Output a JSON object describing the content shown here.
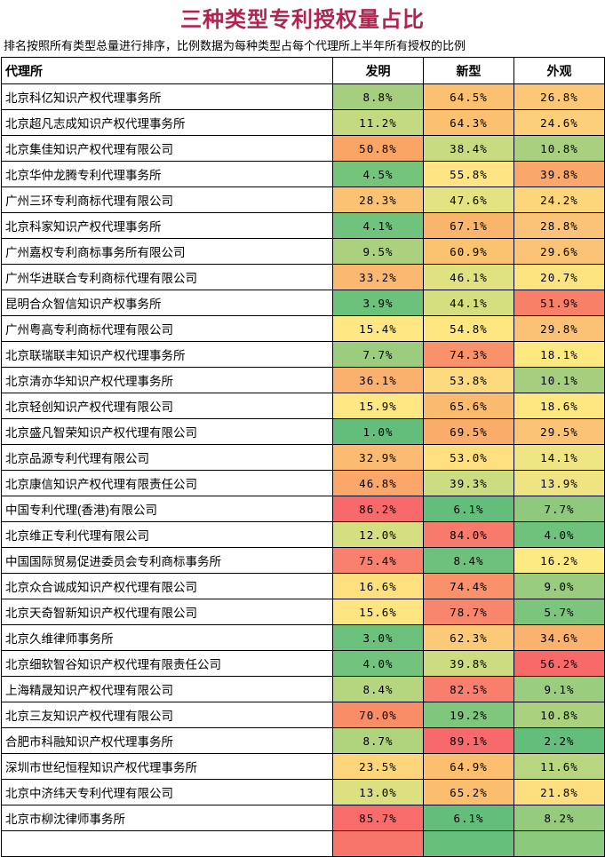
{
  "title": "三种类型专利授权量占比",
  "title_color": "#B0254F",
  "subtitle": "排名按照所有类型总量进行排序，比例数据为每种类型占每个代理所上半年所有授权的比例",
  "chart_data": {
    "type": "heatmap",
    "title": "三种类型专利授权量占比",
    "unit": "%",
    "columns": [
      "代理所",
      "发明",
      "新型",
      "外观"
    ],
    "color_scale": {
      "low_color": "#63BE7B",
      "mid_color": "#FFEB84",
      "high_color": "#F8696B",
      "note": "3-color scale per column: green=low, yellow=mid, red=high"
    },
    "rows": [
      {
        "name": "北京科亿知识产权代理事务所",
        "values": [
          8.8,
          64.5,
          26.8
        ],
        "colors": [
          "#A5CE7E",
          "#FBC170",
          "#FCC878"
        ]
      },
      {
        "name": "北京超凡志成知识产权代理事务所",
        "values": [
          11.2,
          64.3,
          24.6
        ],
        "colors": [
          "#C3DA80",
          "#FBC170",
          "#FCCF7A"
        ]
      },
      {
        "name": "北京集佳知识产权代理有限公司",
        "values": [
          50.8,
          38.4,
          10.8
        ],
        "colors": [
          "#FAA466",
          "#C9DB80",
          "#A9D07E"
        ]
      },
      {
        "name": "北京华仲龙腾专利代理事务所",
        "values": [
          4.5,
          55.8,
          39.8
        ],
        "colors": [
          "#74C47C",
          "#FEE482",
          "#FAA76B"
        ]
      },
      {
        "name": "广州三环专利商标代理有限公司",
        "values": [
          28.3,
          47.6,
          24.2
        ],
        "colors": [
          "#FBC274",
          "#E4E382",
          "#FDD67C"
        ]
      },
      {
        "name": "北京科家知识产权代理事务所",
        "values": [
          4.1,
          67.1,
          28.8
        ],
        "colors": [
          "#70C37C",
          "#FAB56C",
          "#FBC377"
        ]
      },
      {
        "name": "广州嘉权专利商标事务所有限公司",
        "values": [
          9.5,
          60.9,
          29.6
        ],
        "colors": [
          "#ABD17E",
          "#FBC370",
          "#FBC376"
        ]
      },
      {
        "name": "广州华进联合专利商标代理有限公司",
        "values": [
          33.2,
          46.1,
          20.7
        ],
        "colors": [
          "#FBB871",
          "#E0E181",
          "#FEE381"
        ]
      },
      {
        "name": "昆明合众智信知识产权事务所",
        "values": [
          3.9,
          44.1,
          51.9
        ],
        "colors": [
          "#6CC17B",
          "#D6DF80",
          "#F87F68"
        ]
      },
      {
        "name": "广州粤高专利商标代理有限公司",
        "values": [
          15.4,
          54.8,
          29.8
        ],
        "colors": [
          "#FFE884",
          "#FEE681",
          "#FBC275"
        ]
      },
      {
        "name": "北京联瑞联丰知识产权代理事务所",
        "values": [
          7.7,
          74.3,
          18.1
        ],
        "colors": [
          "#9CCC7E",
          "#F9926B",
          "#FEE981"
        ]
      },
      {
        "name": "北京清亦华知识产权代理事务所",
        "values": [
          36.1,
          53.8,
          10.1
        ],
        "colors": [
          "#FBB16E",
          "#FDDA7D",
          "#A5CF7E"
        ]
      },
      {
        "name": "北京轻创知识产权代理有限公司",
        "values": [
          15.9,
          65.6,
          18.6
        ],
        "colors": [
          "#FFE883",
          "#FABB6E",
          "#FEE680"
        ]
      },
      {
        "name": "北京盛凡智荣知识产权代理有限公司",
        "values": [
          1.0,
          69.5,
          29.5
        ],
        "colors": [
          "#63BE7B",
          "#FAAC6B",
          "#FBC375"
        ]
      },
      {
        "name": "北京品源专利代理有限公司",
        "values": [
          32.9,
          53.0,
          14.1
        ],
        "colors": [
          "#FBBC72",
          "#FEE080",
          "#EFE683"
        ]
      },
      {
        "name": "北京康信知识产权代理有限责任公司",
        "values": [
          46.8,
          39.3,
          13.9
        ],
        "colors": [
          "#FAA769",
          "#CCDC80",
          "#EEE582"
        ]
      },
      {
        "name": "中国专利代理(香港)有限公司",
        "values": [
          86.2,
          6.1,
          7.7
        ],
        "colors": [
          "#F8696B",
          "#63BE7B",
          "#8FC97D"
        ]
      },
      {
        "name": "北京维正专利代理有限公司",
        "values": [
          12.0,
          84.0,
          4.0
        ],
        "colors": [
          "#D5DE81",
          "#F87A6C",
          "#6FC27C"
        ]
      },
      {
        "name": "中国国际贸易促进委员会专利商标事务所",
        "values": [
          75.4,
          8.4,
          16.2
        ],
        "colors": [
          "#F8806D",
          "#6DC17C",
          "#FEEA83"
        ]
      },
      {
        "name": "北京众合诚成知识产权代理有限公司",
        "values": [
          16.6,
          74.4,
          9.0
        ],
        "colors": [
          "#FFE07F",
          "#F9916A",
          "#99CC7E"
        ]
      },
      {
        "name": "北京天奇智新知识产权代理有限公司",
        "values": [
          15.6,
          78.7,
          5.7
        ],
        "colors": [
          "#FFE582",
          "#F8866C",
          "#7CC57D"
        ]
      },
      {
        "name": "北京久维律师事务所",
        "values": [
          3.0,
          62.3,
          34.6
        ],
        "colors": [
          "#6BC17C",
          "#FBCA79",
          "#FAB26F"
        ]
      },
      {
        "name": "北京细软智谷知识产权代理有限责任公司",
        "values": [
          4.0,
          39.8,
          56.2
        ],
        "colors": [
          "#72C37C",
          "#CDDC80",
          "#F86A69"
        ]
      },
      {
        "name": "上海精晟知识产权代理有限公司",
        "values": [
          8.4,
          82.5,
          9.1
        ],
        "colors": [
          "#B5D67F",
          "#F87F6C",
          "#9ACD7E"
        ]
      },
      {
        "name": "北京三友知识产权代理有限公司",
        "values": [
          70.0,
          19.2,
          10.8
        ],
        "colors": [
          "#F98D68",
          "#7FC77D",
          "#AAD17E"
        ]
      },
      {
        "name": "合肥市科融知识产权代理事务所",
        "values": [
          8.7,
          89.1,
          2.2
        ],
        "colors": [
          "#B0D37E",
          "#F8696B",
          "#63BE7B"
        ]
      },
      {
        "name": "深圳市世纪恒程知识产权代理事务所",
        "values": [
          23.5,
          64.9,
          11.6
        ],
        "colors": [
          "#FDD67C",
          "#FBBF6F",
          "#B8D67F"
        ]
      },
      {
        "name": "北京中济纬天专利代理有限公司",
        "values": [
          13.0,
          65.2,
          21.8
        ],
        "colors": [
          "#DCE081",
          "#FBBD6E",
          "#FEDF7F"
        ]
      },
      {
        "name": "北京市柳沈律师事务所",
        "values": [
          85.7,
          6.1,
          8.2
        ],
        "colors": [
          "#F86D6B",
          "#63BE7B",
          "#95CB7D"
        ]
      }
    ],
    "cutoff_row_colors": [
      "#F8756C",
      "#66BF7B",
      "#8BC97D"
    ]
  }
}
